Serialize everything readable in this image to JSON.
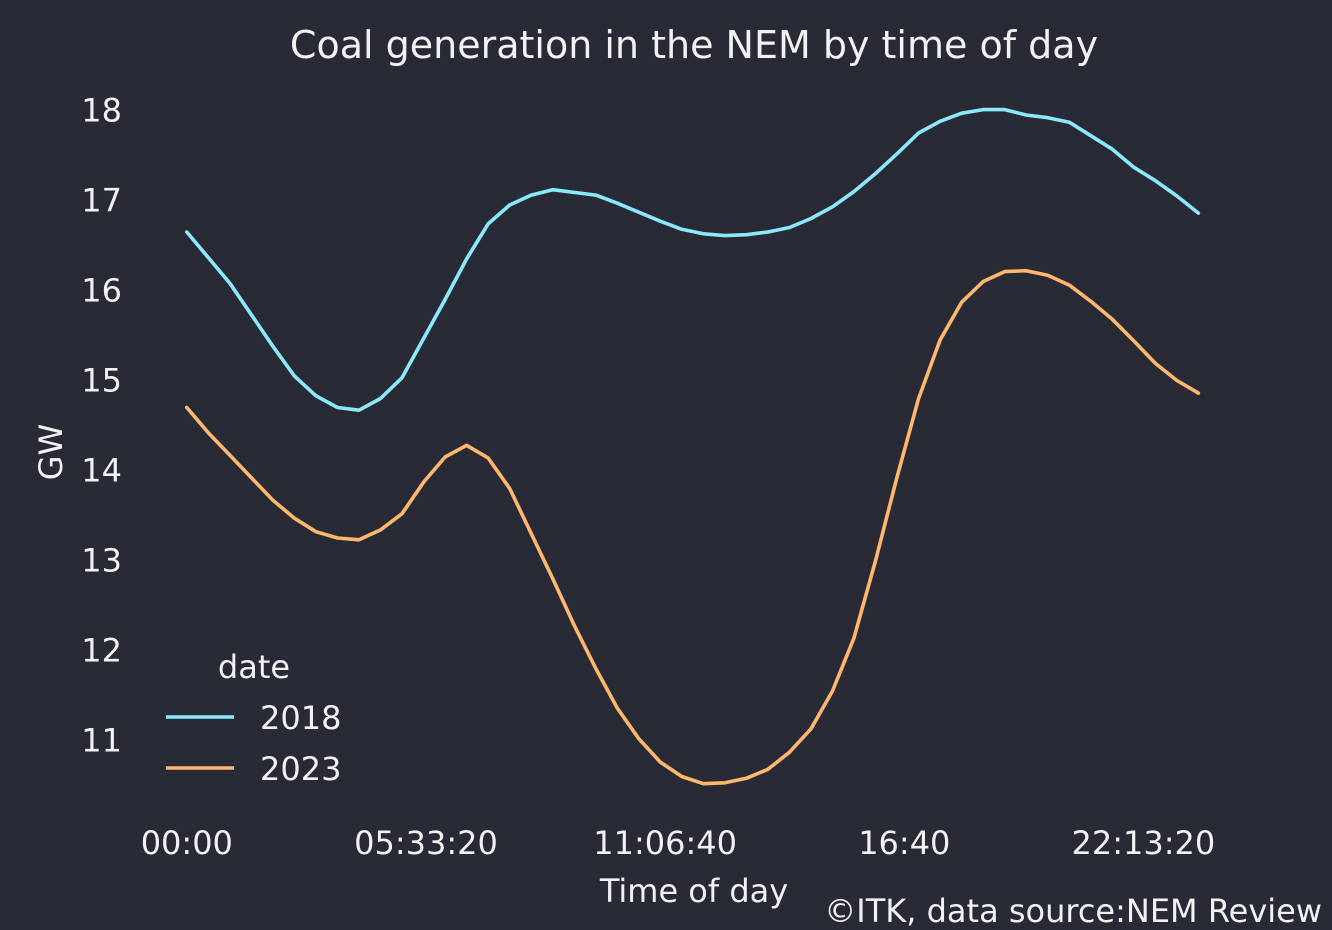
{
  "chart_data": {
    "type": "line",
    "title": "Coal generation in the NEM by time of day",
    "xlabel": "Time of day",
    "ylabel": "GW",
    "x_unit": "seconds since midnight",
    "x_ticks": [
      {
        "value": 0,
        "label": "00:00"
      },
      {
        "value": 20000,
        "label": "05:33:20"
      },
      {
        "value": 40000,
        "label": "11:06:40"
      },
      {
        "value": 60000,
        "label": "16:40"
      },
      {
        "value": 80000,
        "label": "22:13:20"
      }
    ],
    "y_ticks": [
      11,
      12,
      13,
      14,
      15,
      16,
      17,
      18
    ],
    "xlim": [
      -4500,
      89500
    ],
    "ylim": [
      10.25,
      18.25
    ],
    "grid": false,
    "legend": {
      "title": "date",
      "placement": "lower-left"
    },
    "series": [
      {
        "name": "2018",
        "color": "#8be9fd",
        "x": [
          0,
          3600,
          7200,
          9000,
          10800,
          12600,
          14400,
          16200,
          18000,
          21600,
          23400,
          25200,
          27000,
          28800,
          30600,
          34200,
          36000,
          37800,
          39600,
          41400,
          43200,
          45000,
          46800,
          48600,
          50400,
          52200,
          54000,
          55800,
          57600,
          59400,
          61200,
          63000,
          64800,
          66600,
          68400,
          70200,
          72000,
          73800,
          75600,
          77400,
          79200,
          81000,
          82800,
          84600
        ],
        "values": [
          16.65,
          16.08,
          15.38,
          15.05,
          14.83,
          14.7,
          14.67,
          14.8,
          15.03,
          15.9,
          16.35,
          16.74,
          16.95,
          17.06,
          17.12,
          17.06,
          16.97,
          16.87,
          16.77,
          16.68,
          16.63,
          16.61,
          16.62,
          16.65,
          16.7,
          16.8,
          16.93,
          17.1,
          17.3,
          17.52,
          17.75,
          17.88,
          17.97,
          18.01,
          18.01,
          17.95,
          17.92,
          17.87,
          17.72,
          17.57,
          17.37,
          17.22,
          17.05,
          16.86
        ]
      },
      {
        "name": "2023",
        "color": "#ffb86c",
        "x": [
          0,
          1800,
          3600,
          5400,
          7200,
          9000,
          10800,
          12600,
          14400,
          16200,
          18000,
          19800,
          21600,
          23400,
          25200,
          27000,
          28800,
          30600,
          32400,
          34200,
          36000,
          37800,
          39600,
          41400,
          43200,
          45000,
          46800,
          48600,
          50400,
          52200,
          54000,
          55800,
          57600,
          59400,
          61200,
          63000,
          64800,
          66600,
          68400,
          70200,
          72000,
          73800,
          75600,
          77400,
          79200,
          81000,
          82800,
          84600
        ],
        "values": [
          14.7,
          14.42,
          14.17,
          13.92,
          13.67,
          13.47,
          13.32,
          13.25,
          13.23,
          13.34,
          13.52,
          13.87,
          14.15,
          14.28,
          14.14,
          13.8,
          13.3,
          12.8,
          12.28,
          11.8,
          11.36,
          11.02,
          10.76,
          10.6,
          10.52,
          10.53,
          10.58,
          10.68,
          10.87,
          11.13,
          11.55,
          12.14,
          13.0,
          13.93,
          14.8,
          15.45,
          15.87,
          16.1,
          16.21,
          16.22,
          16.17,
          16.06,
          15.88,
          15.68,
          15.44,
          15.19,
          15.0,
          14.86
        ]
      }
    ]
  },
  "copyright": "©ITK, data source:NEM Review"
}
